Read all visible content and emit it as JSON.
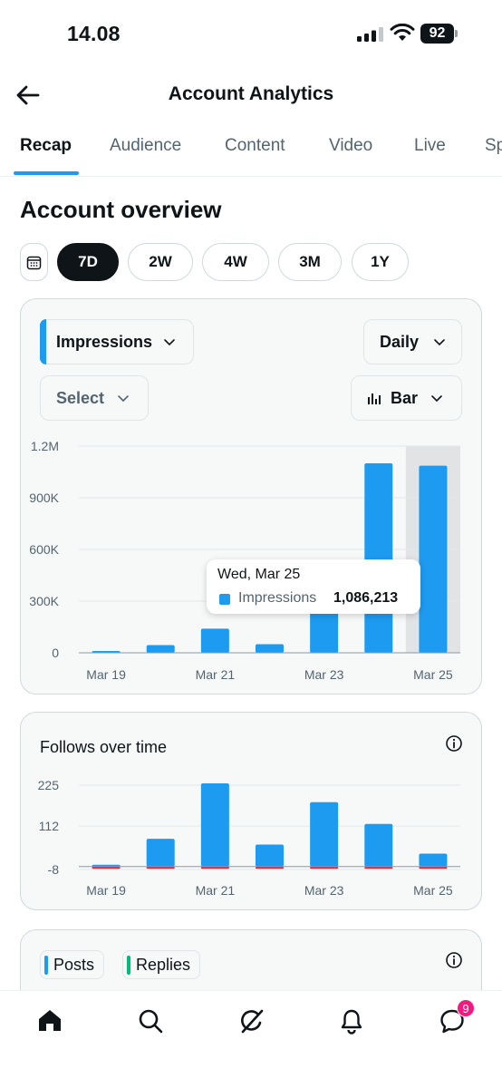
{
  "status_bar": {
    "time": "14.08",
    "battery": "92"
  },
  "header": {
    "title": "Account Analytics",
    "back_icon": "arrow-left-icon"
  },
  "tabs": [
    {
      "label": "Recap",
      "active": true
    },
    {
      "label": "Audience"
    },
    {
      "label": "Content"
    },
    {
      "label": "Video"
    },
    {
      "label": "Live"
    },
    {
      "label": "Sp"
    }
  ],
  "overview": {
    "title": "Account overview",
    "calendar_icon": "calendar-icon",
    "ranges": [
      {
        "label": "7D",
        "active": true
      },
      {
        "label": "2W"
      },
      {
        "label": "4W"
      },
      {
        "label": "3M"
      },
      {
        "label": "1Y"
      }
    ]
  },
  "impressions_card": {
    "metric_dropdown": "Impressions",
    "interval_dropdown": "Daily",
    "compare_dropdown": "Select",
    "chart_type_dropdown": "Bar",
    "tooltip": {
      "date": "Wed, Mar 25",
      "label": "Impressions",
      "value": "1,086,213"
    }
  },
  "follows_card": {
    "title": "Follows over time"
  },
  "posts_card": {
    "legend": [
      {
        "label": "Posts",
        "color": "#1d9bf0"
      },
      {
        "label": "Replies",
        "color": "#00ba7c"
      }
    ]
  },
  "bottom_nav": {
    "items": [
      "home-icon",
      "search-icon",
      "grok-icon",
      "notifications-icon",
      "messages-icon"
    ],
    "messages_badge": "9"
  },
  "chart_data": [
    {
      "type": "bar",
      "categories": [
        "Mar 19",
        "Mar 20",
        "Mar 21",
        "Mar 22",
        "Mar 23",
        "Mar 24",
        "Mar 25"
      ],
      "x_tick_labels": [
        "Mar 19",
        "Mar 21",
        "Mar 23",
        "Mar 25"
      ],
      "series": [
        {
          "name": "Impressions",
          "color": "#1d9bf0",
          "values": [
            5000,
            45000,
            140000,
            50000,
            360000,
            1100000,
            1086213
          ]
        }
      ],
      "y_ticks": [
        "0",
        "300K",
        "600K",
        "900K",
        "1.2M"
      ],
      "ylim": [
        0,
        1200000
      ],
      "highlighted_category": "Mar 25",
      "grid": true
    },
    {
      "type": "bar",
      "title": "Follows over time",
      "categories": [
        "Mar 19",
        "Mar 20",
        "Mar 21",
        "Mar 22",
        "Mar 23",
        "Mar 24",
        "Mar 25"
      ],
      "x_tick_labels": [
        "Mar 19",
        "Mar 21",
        "Mar 23",
        "Mar 25"
      ],
      "series": [
        {
          "name": "Follows",
          "color": "#1d9bf0",
          "values": [
            1,
            77,
            230,
            61,
            178,
            118,
            36
          ]
        },
        {
          "name": "Unfollows",
          "color": "#f4212e",
          "values": [
            -1,
            -1,
            -1,
            -4,
            -2,
            -2,
            -2
          ]
        }
      ],
      "y_ticks": [
        "-8",
        "112",
        "225"
      ],
      "ylim": [
        -8,
        225
      ],
      "grid": true
    }
  ]
}
